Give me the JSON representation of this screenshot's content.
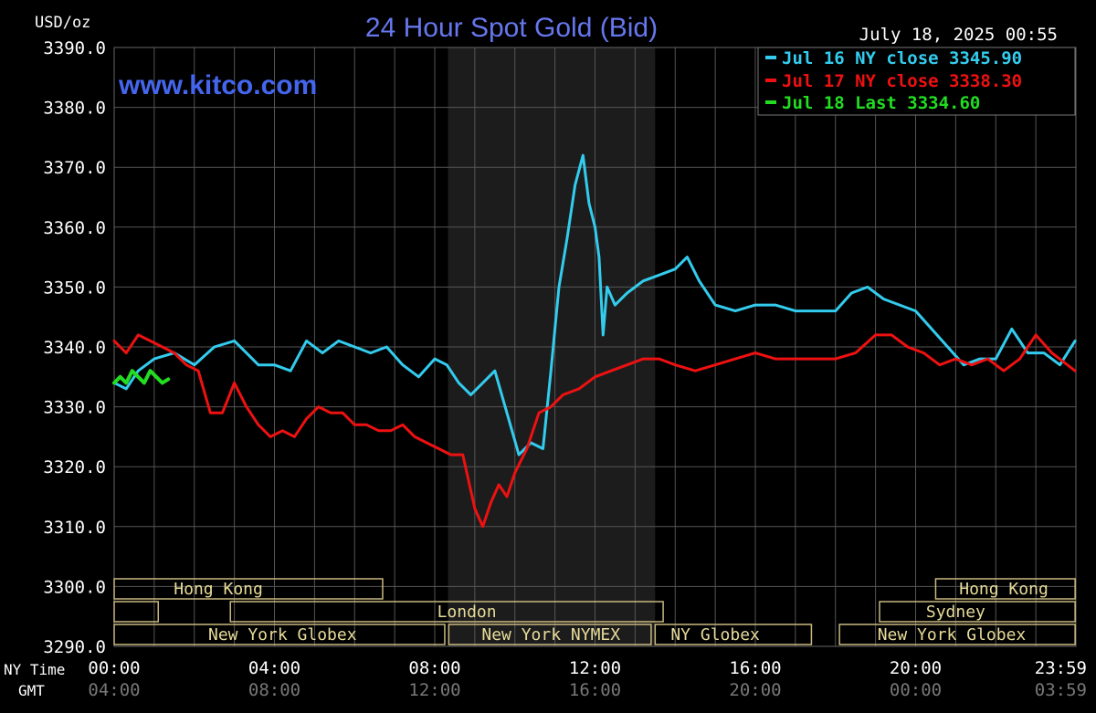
{
  "chart_data": {
    "type": "line",
    "title": "24 Hour Spot Gold (Bid)",
    "unit_label": "USD/oz",
    "watermark": "www.kitco.com",
    "timestamp": "July 18, 2025 00:55",
    "ylim": [
      3290,
      3390
    ],
    "yticks": [
      "3390.0",
      "3380.0",
      "3370.0",
      "3360.0",
      "3350.0",
      "3340.0",
      "3330.0",
      "3320.0",
      "3310.0",
      "3300.0",
      "3290.0"
    ],
    "x_range_hours": [
      0,
      24
    ],
    "xaxis_ny_label": "NY Time",
    "xaxis_gmt_label": "GMT",
    "xticks_ny": [
      "00:00",
      "04:00",
      "08:00",
      "12:00",
      "16:00",
      "20:00",
      "23:59"
    ],
    "xticks_gmt": [
      "04:00",
      "08:00",
      "12:00",
      "16:00",
      "20:00",
      "00:00",
      "03:59"
    ],
    "xtick_hours": [
      0,
      4,
      8,
      12,
      16,
      20,
      23.98
    ],
    "shaded_session_hours": [
      8.33,
      13.5
    ],
    "legend": [
      {
        "label": "Jul 16 NY close 3345.90",
        "color": "#33ccee"
      },
      {
        "label": "Jul 17 NY close 3338.30",
        "color": "#ee1111"
      },
      {
        "label": "Jul 18 Last 3334.60",
        "color": "#22dd22"
      }
    ],
    "series": [
      {
        "name": "Jul 16",
        "color": "#33ccee",
        "x": [
          0,
          0.3,
          0.6,
          1.0,
          1.5,
          2.0,
          2.5,
          3.0,
          3.3,
          3.6,
          4.0,
          4.4,
          4.8,
          5.2,
          5.6,
          6.0,
          6.4,
          6.8,
          7.2,
          7.6,
          8.0,
          8.3,
          8.6,
          8.9,
          9.2,
          9.5,
          9.8,
          10.1,
          10.4,
          10.7,
          10.9,
          11.1,
          11.3,
          11.5,
          11.7,
          11.85,
          12.0,
          12.1,
          12.2,
          12.3,
          12.5,
          12.8,
          13.2,
          13.6,
          14.0,
          14.3,
          14.6,
          15.0,
          15.5,
          16.0,
          16.5,
          17.0,
          17.5,
          18.0,
          18.4,
          18.8,
          19.2,
          19.6,
          20.0,
          20.4,
          20.8,
          21.2,
          21.6,
          22.0,
          22.4,
          22.8,
          23.2,
          23.6,
          23.98
        ],
        "values": [
          3334,
          3333,
          3336,
          3338,
          3339,
          3337,
          3340,
          3341,
          3339,
          3337,
          3337,
          3336,
          3341,
          3339,
          3341,
          3340,
          3339,
          3340,
          3337,
          3335,
          3338,
          3337,
          3334,
          3332,
          3334,
          3336,
          3329,
          3322,
          3324,
          3323,
          3336,
          3350,
          3358,
          3367,
          3372,
          3364,
          3360,
          3355,
          3342,
          3350,
          3347,
          3349,
          3351,
          3352,
          3353,
          3355,
          3351,
          3347,
          3346,
          3347,
          3347,
          3346,
          3346,
          3346,
          3349,
          3350,
          3348,
          3347,
          3346,
          3343,
          3340,
          3337,
          3338,
          3338,
          3343,
          3339,
          3339,
          3337,
          3341
        ]
      },
      {
        "name": "Jul 17",
        "color": "#ee1111",
        "x": [
          0,
          0.3,
          0.6,
          0.9,
          1.2,
          1.5,
          1.8,
          2.1,
          2.4,
          2.7,
          3.0,
          3.3,
          3.6,
          3.9,
          4.2,
          4.5,
          4.8,
          5.1,
          5.4,
          5.7,
          6.0,
          6.3,
          6.6,
          6.9,
          7.2,
          7.5,
          7.8,
          8.1,
          8.4,
          8.7,
          9.0,
          9.2,
          9.4,
          9.6,
          9.8,
          10.0,
          10.3,
          10.6,
          10.9,
          11.2,
          11.6,
          12.0,
          12.4,
          12.8,
          13.2,
          13.6,
          14.0,
          14.5,
          15.0,
          15.5,
          16.0,
          16.5,
          17.0,
          17.5,
          18.0,
          18.5,
          19.0,
          19.4,
          19.8,
          20.2,
          20.6,
          21.0,
          21.4,
          21.8,
          22.2,
          22.6,
          23.0,
          23.4,
          23.98
        ],
        "values": [
          3341,
          3339,
          3342,
          3341,
          3340,
          3339,
          3337,
          3336,
          3329,
          3329,
          3334,
          3330,
          3327,
          3325,
          3326,
          3325,
          3328,
          3330,
          3329,
          3329,
          3327,
          3327,
          3326,
          3326,
          3327,
          3325,
          3324,
          3323,
          3322,
          3322,
          3313,
          3310,
          3314,
          3317,
          3315,
          3319,
          3323,
          3329,
          3330,
          3332,
          3333,
          3335,
          3336,
          3337,
          3338,
          3338,
          3337,
          3336,
          3337,
          3338,
          3339,
          3338,
          3338,
          3338,
          3338,
          3339,
          3342,
          3342,
          3340,
          3339,
          3337,
          3338,
          3337,
          3338,
          3336,
          3338,
          3342,
          3339,
          3336
        ]
      },
      {
        "name": "Jul 18",
        "color": "#22dd22",
        "x": [
          0,
          0.15,
          0.3,
          0.45,
          0.6,
          0.75,
          0.9,
          1.05,
          1.2,
          1.35
        ],
        "values": [
          3334,
          3335,
          3334,
          3336,
          3335,
          3334,
          3336,
          3335,
          3334,
          3334.6
        ]
      }
    ],
    "sessions": [
      {
        "label": "Hong Kong",
        "start": 0,
        "end": 6.7,
        "row": 0,
        "text_at": 2.6
      },
      {
        "label": "",
        "start": 0,
        "end": 1.1,
        "row": 1
      },
      {
        "label": "London",
        "start": 2.9,
        "end": 13.7,
        "row": 1,
        "text_at": 8.8
      },
      {
        "label": "New York Globex",
        "start": 0,
        "end": 8.25,
        "row": 2,
        "text_at": 4.2
      },
      {
        "label": "New York NYMEX",
        "start": 8.35,
        "end": 13.4,
        "row": 2,
        "text_at": 10.9
      },
      {
        "label": "NY Globex",
        "start": 13.5,
        "end": 17.4,
        "row": 2,
        "text_at": 15.0
      },
      {
        "label": "Hong Kong",
        "start": 20.5,
        "end": 23.98,
        "row": 0,
        "text_at": 22.2
      },
      {
        "label": "Sydney",
        "start": 19.1,
        "end": 23.98,
        "row": 1,
        "text_at": 21.0
      },
      {
        "label": "New York Globex",
        "start": 18.1,
        "end": 23.98,
        "row": 2,
        "text_at": 20.9
      }
    ],
    "grid": true,
    "legend_position": "top-right"
  }
}
